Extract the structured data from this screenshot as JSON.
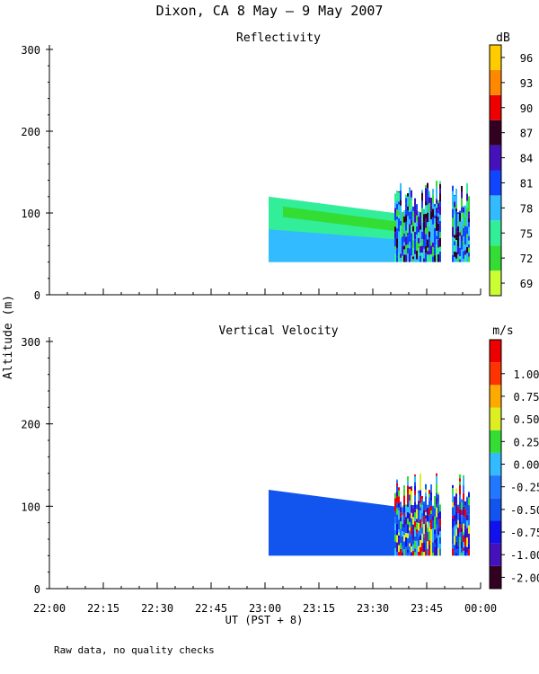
{
  "title": "Dixon, CA  8 May –  9 May 2007",
  "footnote": "Raw data, no quality checks",
  "x_axis_label": "UT  (PST + 8)",
  "y_axis_label": "Altitude (m)",
  "chart_data": [
    {
      "type": "heatmap",
      "title": "Reflectivity",
      "x_ticks": [
        "22:00",
        "22:15",
        "22:30",
        "22:45",
        "23:00",
        "23:15",
        "23:30",
        "23:45",
        "00:00"
      ],
      "y_ticks": [
        0,
        100,
        200,
        300
      ],
      "xlim": [
        "22:00",
        "00:00"
      ],
      "ylim": [
        0,
        300
      ],
      "colorbar": {
        "unit": "dB",
        "labels": [
          "69",
          "72",
          "75",
          "78",
          "81",
          "84",
          "87",
          "90",
          "93",
          "96"
        ],
        "colors": [
          "#ccff33",
          "#33dd33",
          "#33ee99",
          "#33bbff",
          "#1144ff",
          "#4411bb",
          "#330022",
          "#ee0000",
          "#ff8800",
          "#ffcc00"
        ]
      },
      "data_regions": [
        {
          "name": "echo-top",
          "t_start": "23:01",
          "t_end": "23:36",
          "alt_bottom": 40,
          "alt_top_start": 120,
          "alt_top_end": 100,
          "level": "75"
        },
        {
          "name": "echo-band",
          "t_start": "23:05",
          "t_end": "23:36",
          "alt_bottom_start": 95,
          "alt_bottom_end": 78,
          "alt_top_start": 108,
          "alt_top_end": 90,
          "level": "72"
        },
        {
          "name": "echo-lower",
          "t_start": "23:01",
          "t_end": "23:36",
          "alt_bottom": 40,
          "alt_top_start": 80,
          "alt_top_end": 68,
          "level": "78"
        },
        {
          "name": "cluster-1",
          "t_start": "23:36",
          "t_end": "23:49",
          "alt_bottom": 40,
          "alt_top": 140,
          "level": "mixed"
        },
        {
          "name": "cluster-2",
          "t_start": "23:52",
          "t_end": "23:57",
          "alt_bottom": 40,
          "alt_top": 140,
          "level": "mixed"
        }
      ]
    },
    {
      "type": "heatmap",
      "title": "Vertical Velocity",
      "x_ticks": [
        "22:00",
        "22:15",
        "22:30",
        "22:45",
        "23:00",
        "23:15",
        "23:30",
        "23:45",
        "00:00"
      ],
      "y_ticks": [
        0,
        100,
        200,
        300
      ],
      "xlim": [
        "22:00",
        "00:00"
      ],
      "ylim": [
        0,
        300
      ],
      "colorbar": {
        "unit": "m/s",
        "labels": [
          "-2.00",
          "-1.00",
          "-0.75",
          "-0.50",
          "-0.25",
          "0.00",
          "0.25",
          "0.50",
          "0.75",
          "1.00"
        ],
        "colors": [
          "#330022",
          "#4411bb",
          "#1111ee",
          "#1155ee",
          "#2277ff",
          "#33bbff",
          "#33dd33",
          "#ddee22",
          "#ffaa00",
          "#ff3300",
          "#ee0000"
        ]
      },
      "data_regions": [
        {
          "name": "velocity-main",
          "t_start": "23:01",
          "t_end": "23:36",
          "alt_bottom": 40,
          "alt_top_start": 120,
          "alt_top_end": 100,
          "level": "-0.50"
        },
        {
          "name": "cluster-1",
          "t_start": "23:36",
          "t_end": "23:49",
          "alt_bottom": 40,
          "alt_top": 140,
          "level": "mixed"
        },
        {
          "name": "cluster-2",
          "t_start": "23:52",
          "t_end": "23:57",
          "alt_bottom": 40,
          "alt_top": 140,
          "level": "mixed"
        }
      ]
    }
  ]
}
